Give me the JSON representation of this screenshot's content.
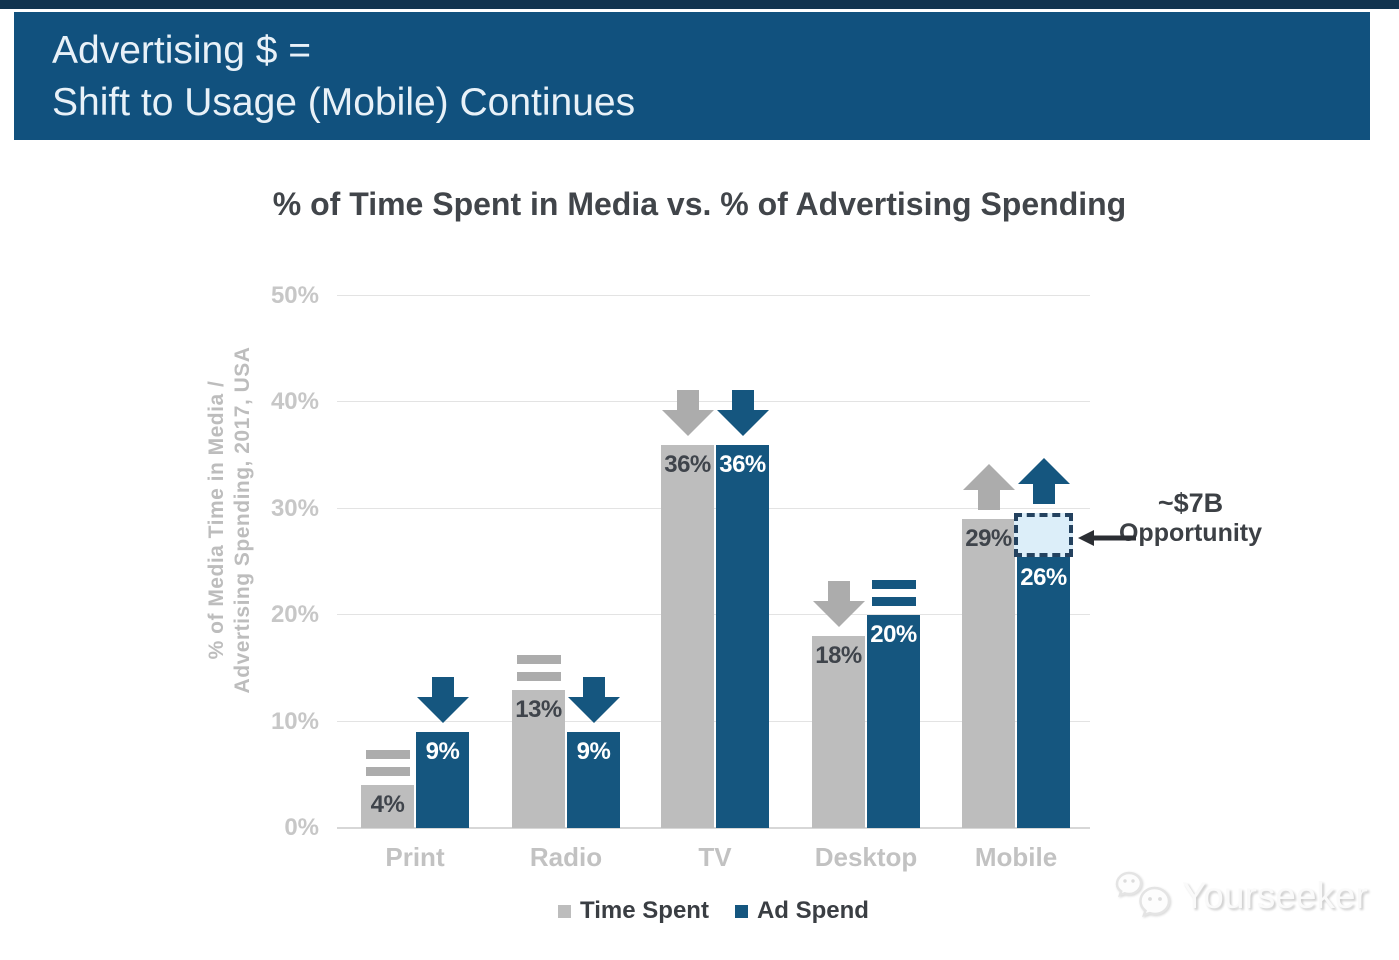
{
  "banner": {
    "line1": "Advertising $ =",
    "line2": "Shift to Usage (Mobile) Continues",
    "bg_color": "#11517E",
    "text_color": "#E8F1F8"
  },
  "chart_data": {
    "type": "bar",
    "title": "% of Time Spent in Media vs. % of Advertising Spending",
    "xlabel": "",
    "ylabel": "% of Media Time in Media / Advertising Spending, 2017, USA",
    "ylabel_lines": [
      "% of Media Time in Media /",
      "Advertising Spending, 2017, USA"
    ],
    "categories": [
      "Print",
      "Radio",
      "TV",
      "Desktop",
      "Mobile"
    ],
    "series": [
      {
        "name": "Time Spent",
        "color": "#BDBDBD",
        "label_color": "#3F444B",
        "trend_color": "#ACACAC",
        "values": [
          4,
          13,
          36,
          18,
          29
        ],
        "trends": [
          "flat",
          "flat",
          "down",
          "down",
          "up"
        ]
      },
      {
        "name": "Ad Spend",
        "color": "#15567F",
        "label_color": "#FFFFFF",
        "trend_color": "#15567F",
        "values": [
          9,
          9,
          36,
          20,
          26
        ],
        "trends": [
          "down",
          "down",
          "down",
          "flat",
          "up"
        ]
      }
    ],
    "ylim": [
      0,
      50
    ],
    "ytick_step": 10,
    "yticks": [
      "0%",
      "10%",
      "20%",
      "30%",
      "40%",
      "50%"
    ],
    "grid": true,
    "legend_position": "bottom",
    "annotation": {
      "line1": "~$7B",
      "line2": "Opportunity",
      "category": "Mobile",
      "series": "Ad Spend",
      "gap_from": 26,
      "gap_to": 29.6,
      "box_fill": "#DCEEF9",
      "box_border": "#24425F"
    }
  },
  "watermark": {
    "text": "Yourseeker"
  }
}
